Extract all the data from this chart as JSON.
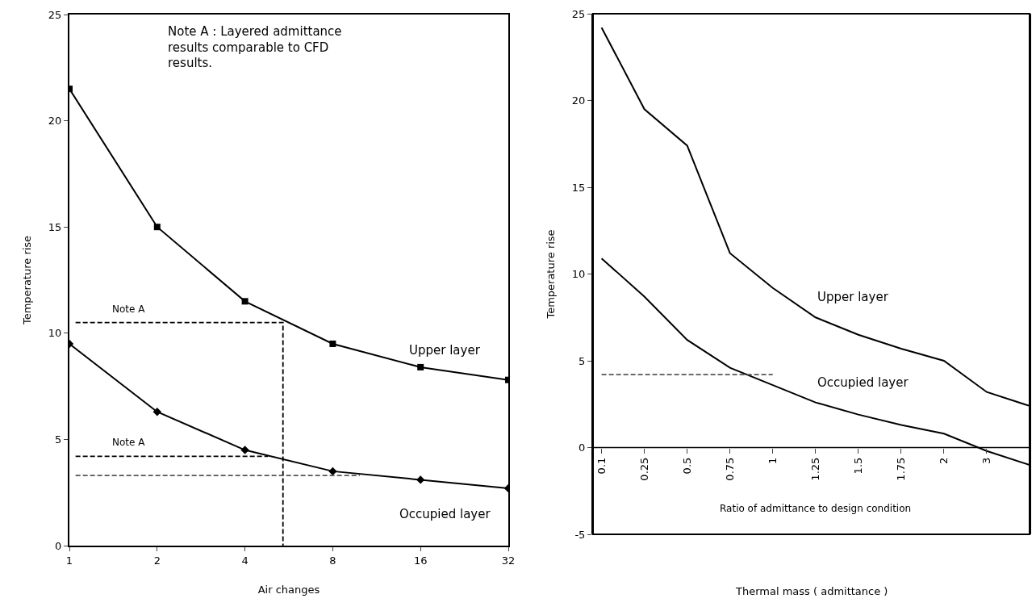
{
  "chart_data": [
    {
      "type": "line",
      "xlabel": "Air changes",
      "ylabel": "Temperature rise",
      "x": [
        1,
        2,
        4,
        8,
        16,
        32
      ],
      "log": "x",
      "xlim": [
        1,
        32
      ],
      "xticks": [
        1,
        2,
        4,
        8,
        16,
        32
      ],
      "ylim": [
        0,
        25
      ],
      "yticks": [
        0,
        5,
        10,
        15,
        20,
        25
      ],
      "grid": false,
      "legend": false,
      "series": [
        {
          "name": "Upper layer",
          "color": "#000000",
          "marker": "square",
          "values": [
            21.5,
            15,
            11.5,
            9.5,
            8.4,
            7.8
          ]
        },
        {
          "name": "Occupied layer",
          "color": "#000000",
          "marker": "diamond",
          "values": [
            9.5,
            6.3,
            4.5,
            3.5,
            3.1,
            2.7
          ]
        },
        {
          "color": "#000000",
          "marker": "none",
          "line_style": "dashed",
          "x": [
            1.05,
            5.4,
            5.4
          ],
          "values": [
            10.5,
            10.5,
            0
          ]
        },
        {
          "color": "#000000",
          "marker": "none",
          "line_style": "dashed",
          "x": [
            1.05,
            4.8
          ],
          "values": [
            4.2,
            4.2
          ]
        },
        {
          "color": "#555555",
          "marker": "none",
          "line_style": "dashed",
          "x": [
            1.05,
            9.9
          ],
          "values": [
            3.3,
            3.3
          ]
        }
      ],
      "annotations": [
        "Note A : Layered admittance results comparable to CFD results.",
        {
          "text": "Note A",
          "x": 1.6,
          "y": 10.5
        },
        {
          "text": "Note A",
          "x": 1.6,
          "y": 4.2
        }
      ]
    },
    {
      "type": "line",
      "xlabel": "Thermal mass ( admittance )",
      "ylabel": "Temperature rise",
      "categories": [
        "0.1",
        "0.25",
        "0.5",
        "0.75",
        "1",
        "1.25",
        "1.5",
        "1.75",
        "2",
        "3",
        null
      ],
      "ylim": [
        -5,
        25
      ],
      "yticks": [
        -5,
        0,
        5,
        10,
        15,
        20,
        25
      ],
      "grid": false,
      "legend": false,
      "marker": "none",
      "series": [
        {
          "name": "Upper layer",
          "color": "#000000",
          "values": [
            24.2,
            19.5,
            17.4,
            11.2,
            9.2,
            7.5,
            6.5,
            5.7,
            5.0,
            3.2,
            2.4
          ]
        },
        {
          "name": "Occupied layer",
          "color": "#000000",
          "values": [
            10.9,
            8.7,
            6.2,
            4.6,
            3.6,
            2.6,
            1.9,
            1.3,
            0.8,
            -0.2,
            -1.0
          ]
        },
        {
          "color": "#555555",
          "line_style": "dashed",
          "values": [
            4.2,
            4.2,
            4.2,
            4.2,
            4.2,
            null,
            null,
            null,
            null,
            null,
            null
          ]
        }
      ],
      "ref_lines": [
        {
          "axis": "y",
          "value": 0,
          "color": "#000000",
          "line_style": "solid"
        }
      ],
      "annotations": [
        "Ratio of admittance to design condition"
      ]
    }
  ]
}
